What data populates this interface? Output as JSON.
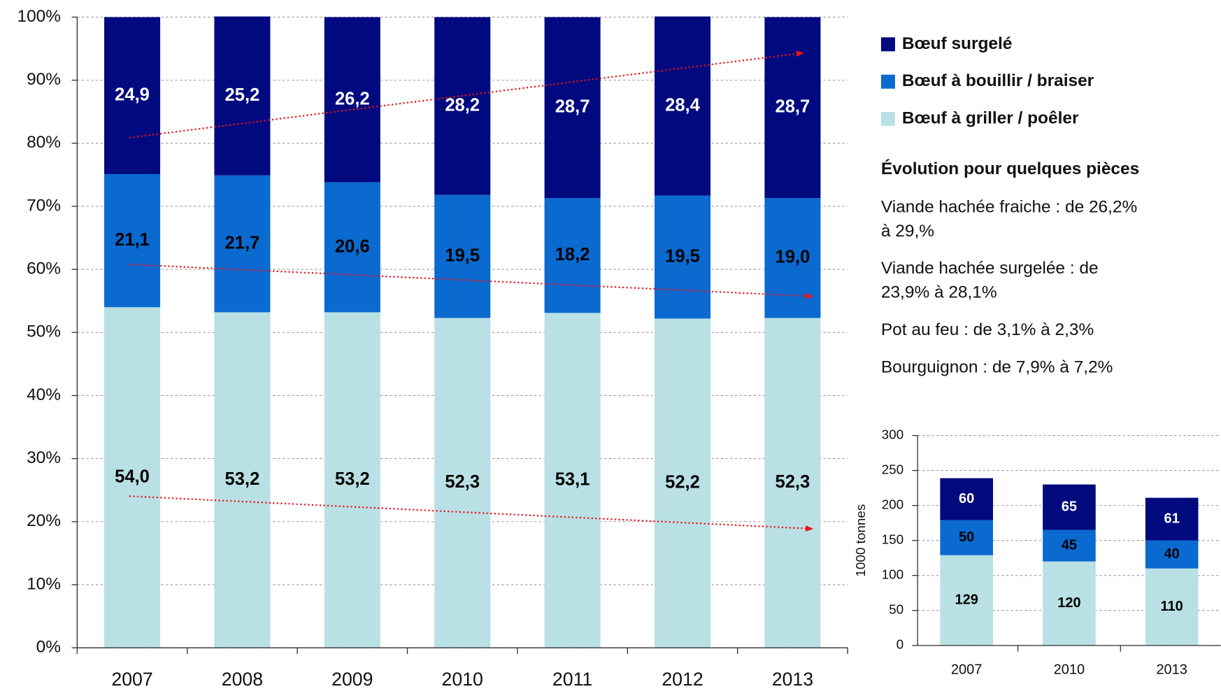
{
  "chart_data": [
    {
      "type": "stacked_bar",
      "categories": [
        "2007",
        "2008",
        "2009",
        "2010",
        "2011",
        "2012",
        "2013"
      ],
      "series": [
        {
          "name": "Bœuf à griller / poêler",
          "color": "#b9e0e4",
          "values": [
            54.0,
            53.2,
            53.2,
            52.3,
            53.1,
            52.2,
            52.3
          ],
          "value_labels": [
            "54,0",
            "53,2",
            "53,2",
            "52,3",
            "53,1",
            "52,2",
            "52,3"
          ]
        },
        {
          "name": "Bœuf à bouillir / braiser",
          "color": "#0a6ad0",
          "values": [
            21.1,
            21.7,
            20.6,
            19.5,
            18.2,
            19.5,
            19.0
          ],
          "value_labels": [
            "21,1",
            "21,7",
            "20,6",
            "19,5",
            "18,2",
            "19,5",
            "19,0"
          ]
        },
        {
          "name": "Bœuf surgelé",
          "color": "#000a7e",
          "values": [
            24.9,
            25.2,
            26.2,
            28.2,
            28.7,
            28.4,
            28.7
          ],
          "value_labels": [
            "24,9",
            "25,2",
            "26,2",
            "28,2",
            "28,7",
            "28,4",
            "28,7"
          ]
        }
      ],
      "ylim": [
        0,
        100
      ],
      "yticks": [
        {
          "value": 0,
          "label": "0%"
        },
        {
          "value": 10,
          "label": "10%"
        },
        {
          "value": 20,
          "label": "20%"
        },
        {
          "value": 30,
          "label": "30%"
        },
        {
          "value": 40,
          "label": "40%"
        },
        {
          "value": 50,
          "label": "50%"
        },
        {
          "value": 60,
          "label": "60%"
        },
        {
          "value": 70,
          "label": "70%"
        },
        {
          "value": 80,
          "label": "80%"
        },
        {
          "value": 90,
          "label": "90%"
        },
        {
          "value": 100,
          "label": "100%"
        }
      ],
      "grid": true,
      "legend": "right"
    },
    {
      "type": "stacked_bar",
      "ylabel": "1000 tonnes",
      "categories": [
        "2007",
        "2010",
        "2013"
      ],
      "series": [
        {
          "color": "#b9e0e4",
          "values": [
            129,
            120,
            110
          ]
        },
        {
          "color": "#0a6ad0",
          "values": [
            50,
            45,
            40
          ]
        },
        {
          "color": "#000a7e",
          "values": [
            60,
            65,
            61
          ]
        }
      ],
      "ylim": [
        0,
        300
      ],
      "yticks": [
        0,
        50,
        100,
        150,
        200,
        250,
        300
      ],
      "grid": true
    }
  ],
  "notes": {
    "title": "Évolution pour quelques pièces",
    "items": [
      [
        "Viande hachée fraiche : de 26,2%",
        "à 29,%"
      ],
      [
        "Viande hachée surgelée : de",
        "23,9% à 28,1%"
      ],
      [
        "Pot au feu : de 3,1% à 2,3%"
      ],
      [
        "Bourguignon : de 7,9% à 7,2%"
      ]
    ]
  }
}
